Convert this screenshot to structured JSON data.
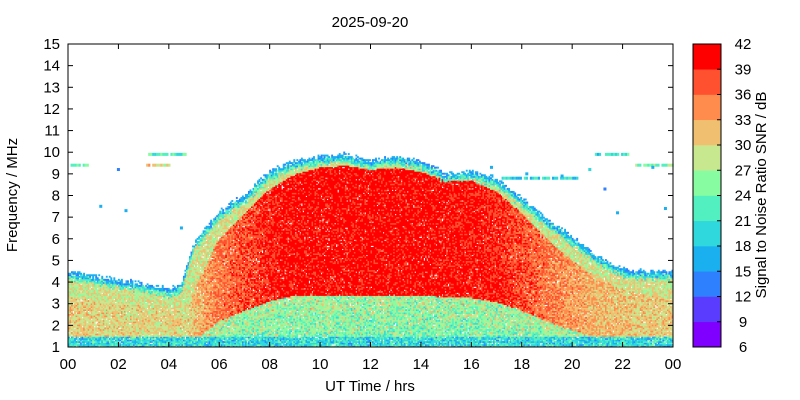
{
  "chart_data": {
    "type": "heatmap",
    "title": "2025-09-20",
    "xlabel": "UT Time / hrs",
    "ylabel": "Frequency / MHz",
    "xlim": [
      0,
      24
    ],
    "ylim": [
      1,
      15
    ],
    "x_ticks": [
      "00",
      "02",
      "04",
      "06",
      "08",
      "10",
      "12",
      "14",
      "16",
      "18",
      "20",
      "22",
      "00"
    ],
    "y_ticks": [
      "1",
      "2",
      "3",
      "4",
      "5",
      "6",
      "7",
      "8",
      "9",
      "10",
      "11",
      "12",
      "13",
      "14",
      "15"
    ],
    "colorbar": {
      "label": "Signal to Noise Ratio SNR / dB",
      "range": [
        6,
        42
      ],
      "ticks": [
        "6",
        "9",
        "12",
        "15",
        "18",
        "21",
        "24",
        "27",
        "30",
        "33",
        "36",
        "39",
        "42"
      ],
      "colors": [
        "#8000ff",
        "#5a3cff",
        "#2f80ff",
        "#1ab0f0",
        "#2fd8dc",
        "#52f0c0",
        "#88fca0",
        "#c8e890",
        "#f0c070",
        "#ff8c4c",
        "#ff5030",
        "#ff0000"
      ]
    },
    "upper_edge_profile": {
      "hours": [
        0,
        1,
        2,
        3,
        4,
        4.5,
        5,
        6,
        7,
        8,
        9,
        10,
        11,
        12,
        13,
        14,
        15,
        16,
        17,
        18,
        19,
        20,
        21,
        22,
        23,
        24
      ],
      "mhz": [
        4.5,
        4.3,
        4.1,
        3.9,
        3.7,
        3.9,
        5.8,
        7.3,
        8.0,
        9.1,
        9.6,
        9.8,
        9.9,
        9.6,
        9.8,
        9.6,
        9.0,
        9.1,
        8.8,
        7.9,
        6.9,
        6.1,
        5.2,
        4.6,
        4.5,
        4.5
      ]
    },
    "strong_region_top_mhz": {
      "hours": [
        0,
        1,
        2,
        3,
        4,
        4.8,
        5.2,
        6,
        7,
        8,
        9,
        10,
        11,
        12,
        13,
        14,
        15,
        16,
        17,
        18,
        19,
        20,
        21,
        22,
        23,
        24
      ],
      "mhz": [
        3.3,
        3.2,
        3.1,
        2.9,
        2.7,
        3.0,
        4.2,
        6.0,
        7.2,
        8.3,
        9.0,
        9.3,
        9.4,
        9.2,
        9.3,
        9.1,
        8.7,
        8.7,
        8.2,
        7.2,
        6.0,
        5.0,
        4.2,
        3.7,
        3.4,
        3.3
      ]
    },
    "sporadic_traces": [
      {
        "x0": 0.1,
        "x1": 0.8,
        "y": 9.4,
        "snr": 24
      },
      {
        "x0": 3.1,
        "x1": 4.7,
        "y": 9.9,
        "snr": 22
      },
      {
        "x0": 3.1,
        "x1": 4.0,
        "y": 9.4,
        "snr": 30
      },
      {
        "x0": 17.2,
        "x1": 20.2,
        "y": 8.8,
        "snr": 20
      },
      {
        "x0": 20.9,
        "x1": 22.2,
        "y": 9.9,
        "snr": 21
      },
      {
        "x0": 22.5,
        "x1": 24.0,
        "y": 9.4,
        "snr": 26
      }
    ],
    "scattered_points": [
      {
        "x": 1.3,
        "y": 7.5,
        "snr": 15
      },
      {
        "x": 2.3,
        "y": 7.3,
        "snr": 15
      },
      {
        "x": 2.0,
        "y": 9.2,
        "snr": 14
      },
      {
        "x": 4.5,
        "y": 6.5,
        "snr": 16
      },
      {
        "x": 16.8,
        "y": 9.3,
        "snr": 15
      },
      {
        "x": 21.3,
        "y": 8.3,
        "snr": 14
      },
      {
        "x": 21.8,
        "y": 7.2,
        "snr": 15
      },
      {
        "x": 23.7,
        "y": 7.4,
        "snr": 16
      },
      {
        "x": 18.2,
        "y": 9.0,
        "snr": 17
      },
      {
        "x": 20.7,
        "y": 9.2,
        "snr": 18
      },
      {
        "x": 19.6,
        "y": 8.9,
        "snr": 15
      },
      {
        "x": 23.2,
        "y": 9.3,
        "snr": 15
      }
    ]
  }
}
